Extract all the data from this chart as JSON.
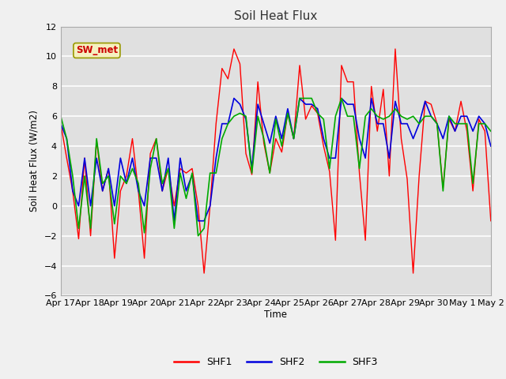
{
  "title": "Soil Heat Flux",
  "ylabel": "Soil Heat Flux (W/m2)",
  "xlabel": "Time",
  "ylim": [
    -6,
    12
  ],
  "annotation": "SW_met",
  "fig_bg_color": "#f0f0f0",
  "plot_bg_color": "#e0e0e0",
  "grid_color": "#ffffff",
  "colors": {
    "SHF1": "#ff0000",
    "SHF2": "#0000dd",
    "SHF3": "#00aa00"
  },
  "x_tick_labels": [
    "Apr 17",
    "Apr 18",
    "Apr 19",
    "Apr 20",
    "Apr 21",
    "Apr 22",
    "Apr 23",
    "Apr 24",
    "Apr 25",
    "Apr 26",
    "Apr 27",
    "Apr 28",
    "Apr 29",
    "Apr 30",
    "May 1",
    "May 2"
  ],
  "SHF1": [
    5.5,
    3.2,
    1.0,
    -2.2,
    3.2,
    -2.0,
    4.4,
    1.0,
    2.5,
    -3.5,
    1.0,
    2.0,
    4.5,
    1.0,
    -3.5,
    3.5,
    4.5,
    1.0,
    2.5,
    0.0,
    2.5,
    2.2,
    2.5,
    0.0,
    -4.5,
    0.0,
    5.5,
    9.2,
    8.5,
    10.5,
    9.5,
    3.5,
    2.1,
    8.3,
    4.2,
    2.2,
    4.5,
    3.6,
    6.2,
    4.5,
    9.4,
    5.8,
    6.7,
    6.2,
    4.0,
    2.3,
    -2.3,
    9.4,
    8.3,
    8.3,
    2.2,
    -2.3,
    8.0,
    5.0,
    7.8,
    2.0,
    10.5,
    4.5,
    1.8,
    -4.5,
    2.0,
    7.0,
    6.8,
    5.5,
    1.2,
    5.8,
    5.0,
    7.0,
    5.0,
    1.0,
    5.8,
    5.0,
    -1.0
  ],
  "SHF2": [
    5.5,
    4.5,
    1.0,
    0.0,
    3.2,
    0.0,
    3.2,
    1.0,
    2.5,
    0.0,
    3.2,
    1.5,
    3.2,
    1.0,
    0.0,
    3.2,
    3.2,
    1.0,
    3.2,
    -1.0,
    3.2,
    1.0,
    2.1,
    -1.0,
    -1.0,
    0.0,
    3.2,
    5.5,
    5.5,
    7.2,
    6.8,
    5.8,
    2.5,
    6.8,
    5.5,
    4.2,
    6.0,
    4.5,
    6.5,
    4.5,
    7.2,
    6.8,
    6.8,
    6.5,
    4.5,
    3.2,
    3.2,
    7.2,
    6.8,
    6.8,
    4.5,
    3.2,
    7.2,
    5.5,
    5.5,
    3.2,
    7.0,
    5.5,
    5.5,
    4.5,
    5.5,
    7.0,
    6.0,
    5.5,
    4.5,
    6.0,
    5.0,
    6.0,
    6.0,
    5.0,
    6.0,
    5.5,
    4.0
  ],
  "SHF3": [
    6.0,
    4.5,
    2.0,
    -1.5,
    2.0,
    -1.5,
    4.5,
    1.5,
    2.0,
    -1.2,
    2.0,
    1.5,
    2.5,
    1.5,
    -1.8,
    2.5,
    4.5,
    1.5,
    2.5,
    -1.5,
    2.2,
    0.5,
    2.2,
    -2.0,
    -1.5,
    2.2,
    2.2,
    4.5,
    5.5,
    6.0,
    6.2,
    6.0,
    2.2,
    6.0,
    4.5,
    2.2,
    5.8,
    4.0,
    6.2,
    4.5,
    7.2,
    7.2,
    7.2,
    6.2,
    5.8,
    2.5,
    6.0,
    7.2,
    6.0,
    6.0,
    2.5,
    6.0,
    6.5,
    6.0,
    5.8,
    6.0,
    6.5,
    6.0,
    5.8,
    6.0,
    5.5,
    6.0,
    6.0,
    5.5,
    1.0,
    6.0,
    5.5,
    5.5,
    5.5,
    1.5,
    5.5,
    5.5,
    5.0
  ]
}
